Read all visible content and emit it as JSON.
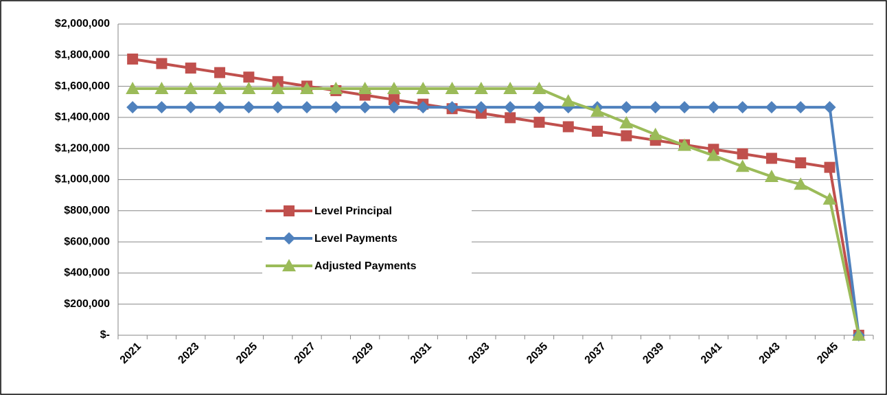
{
  "chart_data": {
    "type": "line",
    "categories": [
      "2021",
      null,
      "2023",
      null,
      "2025",
      null,
      "2027",
      null,
      "2029",
      null,
      "2031",
      null,
      "2033",
      null,
      "2035",
      null,
      "2037",
      null,
      "2039",
      null,
      "2041",
      null,
      "2043",
      null,
      "2045",
      null
    ],
    "series": [
      {
        "name": "Level Principal",
        "color": "#c0504d",
        "marker": "square",
        "values": [
          1775000,
          1746000,
          1717000,
          1688000,
          1659000,
          1630000,
          1601000,
          1572000,
          1543000,
          1514000,
          1485000,
          1456000,
          1427000,
          1398000,
          1369000,
          1340000,
          1311000,
          1282000,
          1253000,
          1224000,
          1195000,
          1166000,
          1137000,
          1108000,
          1079000,
          0
        ]
      },
      {
        "name": "Level Payments",
        "color": "#4f81bd",
        "marker": "diamond",
        "values": [
          1465000,
          1465000,
          1465000,
          1465000,
          1465000,
          1465000,
          1465000,
          1465000,
          1465000,
          1465000,
          1465000,
          1465000,
          1465000,
          1465000,
          1465000,
          1465000,
          1465000,
          1465000,
          1465000,
          1465000,
          1465000,
          1465000,
          1465000,
          1465000,
          1465000,
          0
        ]
      },
      {
        "name": "Adjusted Payments",
        "color": "#9bbb59",
        "marker": "triangle",
        "values": [
          1585000,
          1585000,
          1585000,
          1585000,
          1585000,
          1585000,
          1585000,
          1585000,
          1585000,
          1585000,
          1585000,
          1585000,
          1585000,
          1585000,
          1585000,
          1505000,
          1440000,
          1365000,
          1290000,
          1220000,
          1155000,
          1085000,
          1020000,
          970000,
          875000,
          0
        ]
      }
    ],
    "ylim": [
      0,
      2000000
    ],
    "yticks": [
      {
        "value": 0,
        "label": "$-"
      },
      {
        "value": 200000,
        "label": "$200,000"
      },
      {
        "value": 400000,
        "label": "$400,000"
      },
      {
        "value": 600000,
        "label": "$600,000"
      },
      {
        "value": 800000,
        "label": "$800,000"
      },
      {
        "value": 1000000,
        "label": "$1,000,000"
      },
      {
        "value": 1200000,
        "label": "$1,200,000"
      },
      {
        "value": 1400000,
        "label": "$1,400,000"
      },
      {
        "value": 1600000,
        "label": "$1,600,000"
      },
      {
        "value": 1800000,
        "label": "$1,800,000"
      },
      {
        "value": 2000000,
        "label": "$2,000,000"
      }
    ],
    "grid": true,
    "legend": "inside-left"
  }
}
